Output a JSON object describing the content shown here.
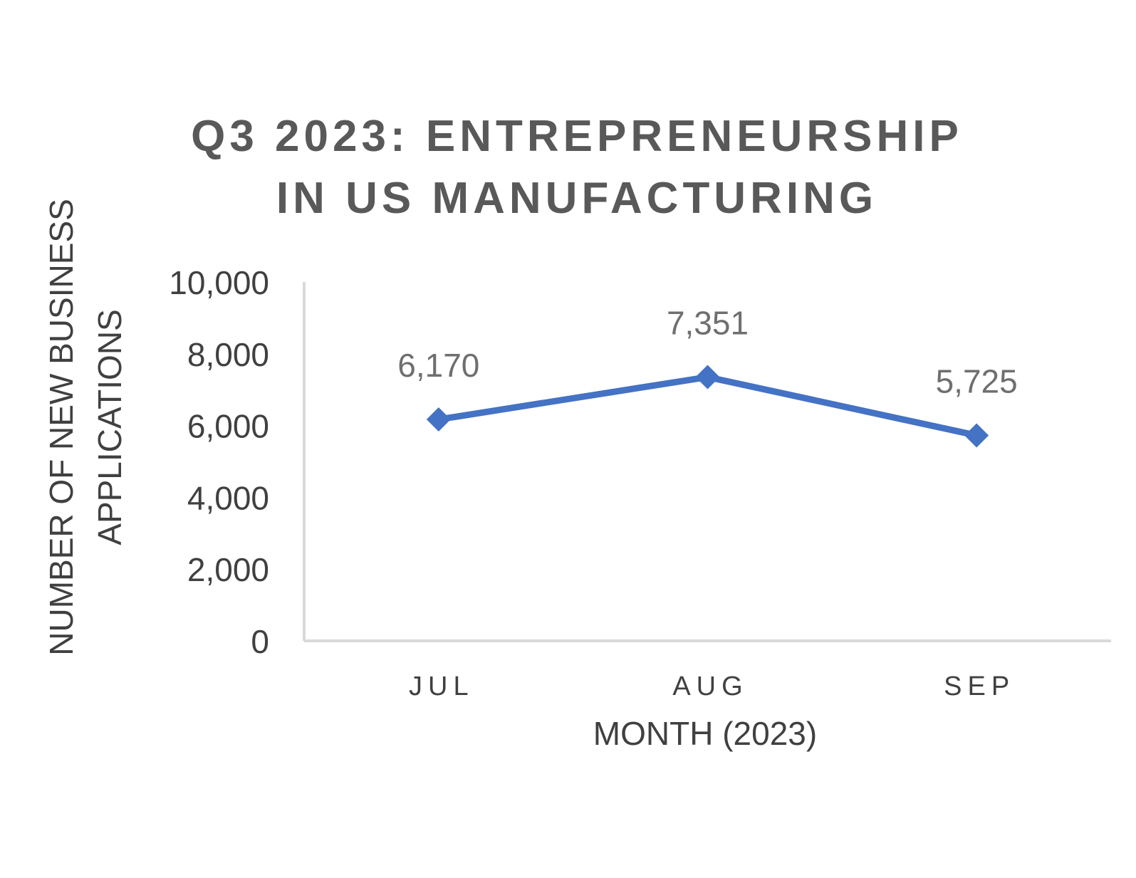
{
  "chart_data": {
    "type": "line",
    "title_lines": [
      "Q3 2023: ENTREPRENEURSHIP",
      "IN US MANUFACTURING"
    ],
    "xlabel": "MONTH (2023)",
    "ylabel_lines": [
      "NUMBER OF NEW BUSINESS",
      "APPLICATIONS"
    ],
    "categories": [
      "JUL",
      "AUG",
      "SEP"
    ],
    "series": [
      {
        "values": [
          6170,
          7351,
          5725
        ],
        "color": "#4472C4",
        "marker": "diamond"
      }
    ],
    "data_labels": [
      "6,170",
      "7,351",
      "5,725"
    ],
    "ylim": [
      0,
      10000
    ],
    "yticks": [
      0,
      2000,
      4000,
      6000,
      8000,
      10000
    ],
    "ytick_labels": [
      "0",
      "2,000",
      "4,000",
      "6,000",
      "8,000",
      "10,000"
    ],
    "grid": false,
    "legend": "none"
  }
}
